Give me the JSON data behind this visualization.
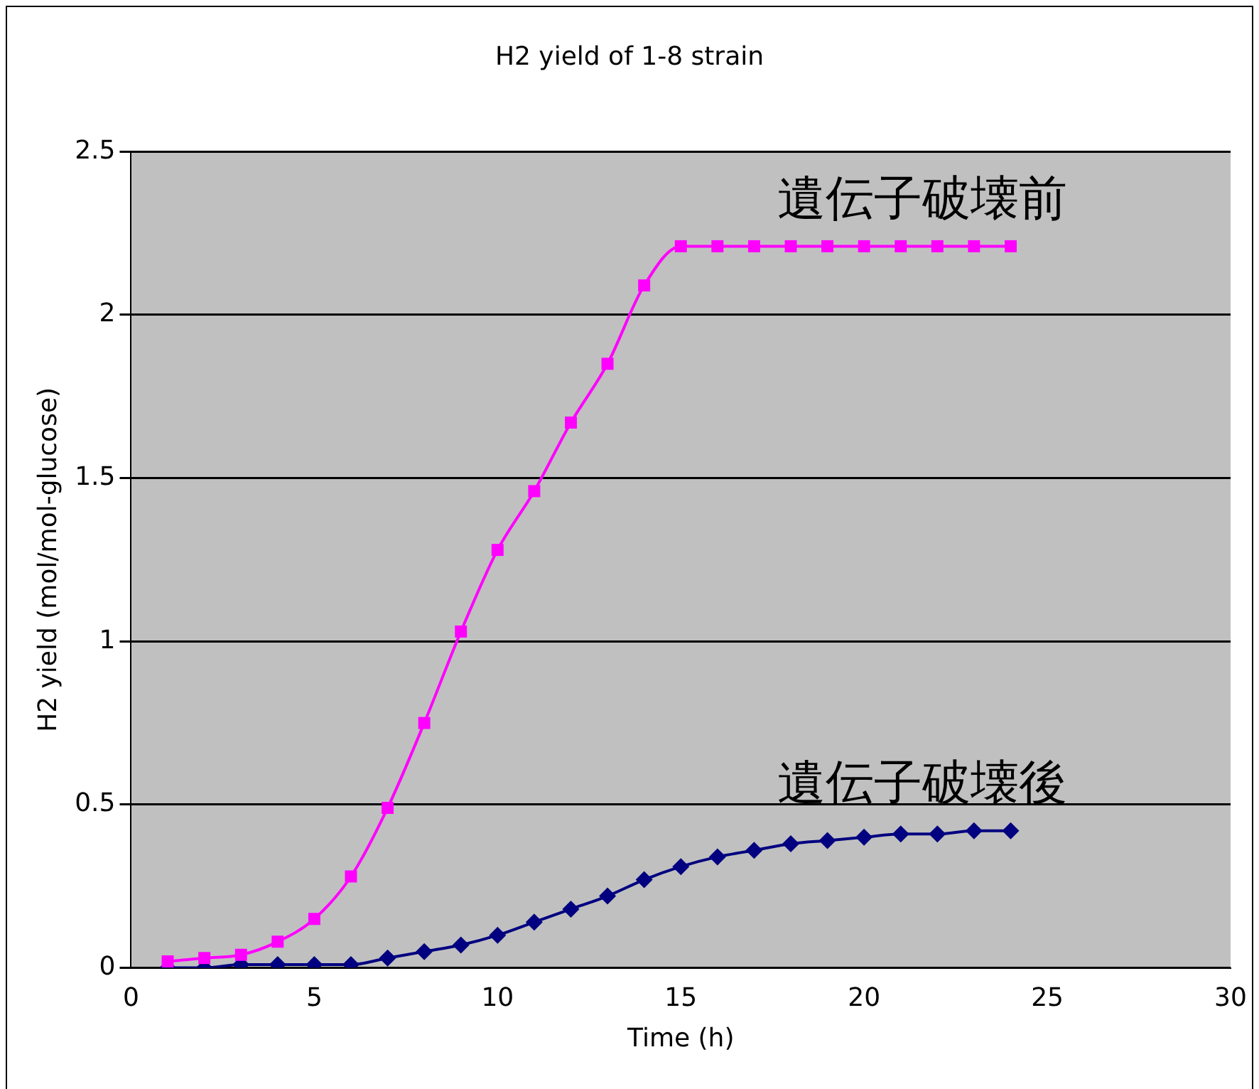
{
  "chart_data": {
    "type": "line",
    "title": "H2 yield of 1-8 strain",
    "xlabel": "Time (h)",
    "ylabel": "H2 yield (mol/mol-glucose)",
    "x": [
      1,
      2,
      3,
      4,
      5,
      6,
      7,
      8,
      9,
      10,
      11,
      12,
      13,
      14,
      15,
      16,
      17,
      18,
      19,
      20,
      21,
      22,
      23,
      24
    ],
    "series": [
      {
        "name": "遺伝子破壊前",
        "color": "#ff00ff",
        "marker": "square",
        "values": [
          0.02,
          0.03,
          0.04,
          0.08,
          0.15,
          0.28,
          0.49,
          0.75,
          1.03,
          1.28,
          1.46,
          1.67,
          1.85,
          2.09,
          2.21,
          2.21,
          2.21,
          2.21,
          2.21,
          2.21,
          2.21,
          2.21,
          2.21,
          2.21
        ]
      },
      {
        "name": "遺伝子破壊後",
        "color": "#000080",
        "marker": "diamond",
        "values": [
          0,
          0,
          0.01,
          0.01,
          0.01,
          0.01,
          0.03,
          0.05,
          0.07,
          0.1,
          0.14,
          0.18,
          0.22,
          0.27,
          0.31,
          0.34,
          0.36,
          0.38,
          0.39,
          0.4,
          0.41,
          0.41,
          0.42,
          0.42
        ]
      }
    ],
    "xlim": [
      0,
      30
    ],
    "xticks": [
      0,
      5,
      10,
      15,
      20,
      25,
      30
    ],
    "ylim": [
      0,
      2.5
    ],
    "yticks": [
      0,
      0.5,
      1,
      1.5,
      2,
      2.5
    ],
    "grid": "y",
    "legend": false,
    "line_style": "solid"
  }
}
